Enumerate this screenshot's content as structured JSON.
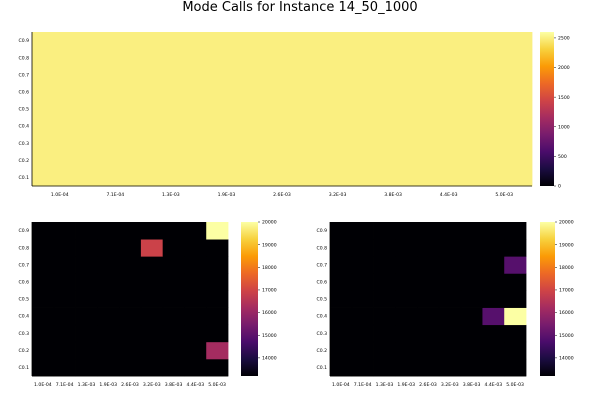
{
  "title": "Mode Calls for Instance 14_50_1000",
  "colors": {
    "inferno": [
      "#000004",
      "#1b0c41",
      "#4a0c6b",
      "#781c6d",
      "#a52c60",
      "#cf4446",
      "#ed6925",
      "#fb9b06",
      "#f7d13d",
      "#fcffa4"
    ]
  },
  "chart_data": [
    {
      "type": "heatmap",
      "x": [
        "1.0E-04",
        "7.1E-04",
        "1.3E-03",
        "1.9E-03",
        "2.6E-03",
        "3.2E-03",
        "3.8E-03",
        "4.4E-03",
        "5.0E-03"
      ],
      "y": [
        "C0.1",
        "C0.2",
        "C0.3",
        "C0.4",
        "C0.5",
        "C0.6",
        "C0.7",
        "C0.8",
        "C0.9"
      ],
      "zrange": [
        0,
        2600
      ],
      "colorbar_ticks": [
        0,
        500,
        1000,
        1500,
        2000,
        2500
      ],
      "z": [
        [
          2500,
          2500,
          2500,
          2500,
          2500,
          2500,
          2500,
          2500,
          2500
        ],
        [
          2500,
          2500,
          2500,
          2500,
          2500,
          2500,
          2500,
          2500,
          2500
        ],
        [
          2500,
          2500,
          2500,
          2500,
          2500,
          2500,
          2500,
          2500,
          2500
        ],
        [
          2500,
          2500,
          2500,
          2500,
          2500,
          2500,
          2500,
          2500,
          2500
        ],
        [
          2500,
          2500,
          2500,
          2500,
          2500,
          2500,
          2500,
          2500,
          2500
        ],
        [
          2500,
          2500,
          2500,
          2500,
          2500,
          2500,
          2500,
          2500,
          2500
        ],
        [
          2500,
          2500,
          2500,
          2500,
          2500,
          2500,
          2500,
          2500,
          2500
        ],
        [
          2500,
          2500,
          2500,
          2500,
          2500,
          2500,
          2500,
          2500,
          2500
        ],
        [
          2500,
          2500,
          2500,
          2500,
          2500,
          2500,
          2500,
          2500,
          2500
        ]
      ]
    },
    {
      "type": "heatmap",
      "x": [
        "1.0E-04",
        "7.1E-04",
        "1.3E-03",
        "1.9E-03",
        "2.6E-03",
        "3.2E-03",
        "3.8E-03",
        "4.4E-03",
        "5.0E-03"
      ],
      "y": [
        "C0.1",
        "C0.2",
        "C0.3",
        "C0.4",
        "C0.5",
        "C0.6",
        "C0.7",
        "C0.8",
        "C0.9"
      ],
      "zrange": [
        13200,
        20000
      ],
      "colorbar_ticks": [
        14000,
        15000,
        16000,
        17000,
        18000,
        19000,
        20000
      ],
      "z": [
        [
          13200,
          13200,
          13200,
          13200,
          13200,
          13200,
          13200,
          13200,
          13200
        ],
        [
          13200,
          13200,
          13200,
          13200,
          13200,
          13200,
          13200,
          13200,
          16200
        ],
        [
          13200,
          13200,
          13200,
          13200,
          13200,
          13200,
          13200,
          13200,
          13200
        ],
        [
          13200,
          13200,
          13200,
          13200,
          13200,
          13200,
          13200,
          13200,
          13200
        ],
        [
          13200,
          13200,
          13200,
          13200,
          13200,
          13200,
          13200,
          13200,
          13200
        ],
        [
          13200,
          13200,
          13200,
          13200,
          13200,
          13200,
          13200,
          13200,
          13200
        ],
        [
          13200,
          13200,
          13200,
          13200,
          13200,
          13200,
          13200,
          13200,
          13200
        ],
        [
          13200,
          13200,
          13200,
          13200,
          13200,
          16900,
          13200,
          13200,
          13200
        ],
        [
          13200,
          13200,
          13200,
          13200,
          13200,
          13200,
          13200,
          13200,
          20000
        ]
      ]
    },
    {
      "type": "heatmap",
      "x": [
        "1.0E-04",
        "7.1E-04",
        "1.3E-03",
        "1.9E-03",
        "2.6E-03",
        "3.2E-03",
        "3.8E-03",
        "4.4E-03",
        "5.0E-03"
      ],
      "y": [
        "C0.1",
        "C0.2",
        "C0.3",
        "C0.4",
        "C0.5",
        "C0.6",
        "C0.7",
        "C0.8",
        "C0.9"
      ],
      "zrange": [
        13200,
        20000
      ],
      "colorbar_ticks": [
        14000,
        15000,
        16000,
        17000,
        18000,
        19000,
        20000
      ],
      "z": [
        [
          13200,
          13200,
          13200,
          13200,
          13200,
          13200,
          13200,
          13200,
          13200
        ],
        [
          13200,
          13200,
          13200,
          13200,
          13200,
          13200,
          13200,
          13200,
          13200
        ],
        [
          13200,
          13200,
          13200,
          13200,
          13200,
          13200,
          13200,
          13200,
          13200
        ],
        [
          13200,
          13200,
          13200,
          13200,
          13200,
          13200,
          13200,
          14900,
          20000
        ],
        [
          13200,
          13200,
          13200,
          13200,
          13200,
          13200,
          13200,
          13200,
          13200
        ],
        [
          13200,
          13200,
          13200,
          13200,
          13200,
          13200,
          13200,
          13200,
          13200
        ],
        [
          13200,
          13200,
          13200,
          13200,
          13200,
          13200,
          13200,
          13200,
          14900
        ],
        [
          13200,
          13200,
          13200,
          13200,
          13200,
          13200,
          13200,
          13200,
          13200
        ],
        [
          13200,
          13200,
          13200,
          13200,
          13200,
          13200,
          13200,
          13200,
          13200
        ]
      ]
    }
  ]
}
